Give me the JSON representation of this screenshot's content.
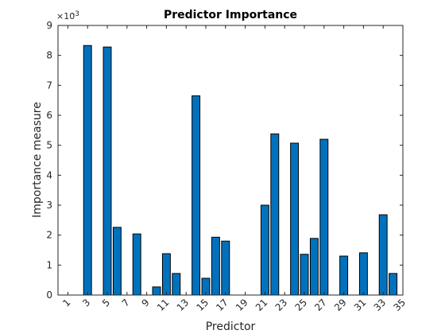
{
  "chart_data": {
    "type": "bar",
    "title": "Predictor Importance",
    "xlabel": "Predictor",
    "ylabel": "Importance measure",
    "y_exponent_base": "×10",
    "y_exponent_power": "-3",
    "x_range": [
      0,
      35
    ],
    "ylim": [
      0,
      9
    ],
    "y_ticks": [
      0,
      1,
      2,
      3,
      4,
      5,
      6,
      7,
      8,
      9
    ],
    "x_tick_labels": [
      "1",
      "3",
      "5",
      "7",
      "9",
      "11",
      "13",
      "15",
      "17",
      "19",
      "21",
      "23",
      "25",
      "27",
      "29",
      "31",
      "33",
      "35"
    ],
    "grid": false,
    "bar_color": "#0072BD",
    "categories": [
      1,
      2,
      3,
      4,
      5,
      6,
      7,
      8,
      9,
      10,
      11,
      12,
      13,
      14,
      15,
      16,
      17,
      18,
      19,
      20,
      21,
      22,
      23,
      24,
      25,
      26,
      27,
      28,
      29,
      30,
      31,
      32,
      33,
      34
    ],
    "values": [
      0,
      0,
      8.33,
      0,
      8.28,
      2.26,
      0,
      2.04,
      0,
      0.27,
      1.38,
      0.72,
      0,
      6.65,
      0.56,
      1.93,
      1.8,
      0,
      0,
      0,
      3.0,
      5.38,
      0,
      5.07,
      1.36,
      1.89,
      5.2,
      0,
      1.3,
      0,
      1.41,
      0,
      2.68,
      0.72
    ]
  }
}
